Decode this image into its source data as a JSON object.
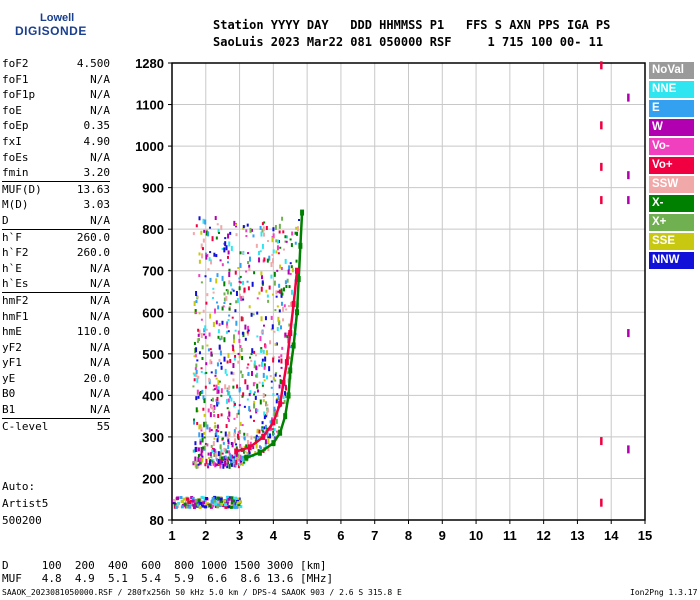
{
  "logo": {
    "line1": "Lowell",
    "line2": "DIGISONDE"
  },
  "header": {
    "line1": "Station YYYY DAY   DDD HHMMSS P1   FFS S AXN PPS IGA PS",
    "line2": "SaoLuis 2023 Mar22 081 050000 RSF     1 715 100 00- 11"
  },
  "params": [
    {
      "label": "foF2",
      "value": "4.500"
    },
    {
      "label": "foF1",
      "value": "N/A"
    },
    {
      "label": "foF1p",
      "value": "N/A"
    },
    {
      "label": "foE",
      "value": "N/A"
    },
    {
      "label": "foEp",
      "value": "0.35"
    },
    {
      "label": "fxI",
      "value": "4.90"
    },
    {
      "label": "foEs",
      "value": "N/A"
    },
    {
      "label": "fmin",
      "value": "3.20"
    },
    {
      "label": "MUF(D)",
      "value": "13.63",
      "sep": true
    },
    {
      "label": "M(D)",
      "value": "3.03"
    },
    {
      "label": "D",
      "value": "N/A"
    },
    {
      "label": "h`F",
      "value": "260.0",
      "sep": true
    },
    {
      "label": "h`F2",
      "value": "260.0"
    },
    {
      "label": "h`E",
      "value": "N/A"
    },
    {
      "label": "h`Es",
      "value": "N/A"
    },
    {
      "label": "hmF2",
      "value": "N/A",
      "sep": true
    },
    {
      "label": "hmF1",
      "value": "N/A"
    },
    {
      "label": "hmE",
      "value": "110.0"
    },
    {
      "label": "yF2",
      "value": "N/A"
    },
    {
      "label": "yF1",
      "value": "N/A"
    },
    {
      "label": "yE",
      "value": "20.0"
    },
    {
      "label": "B0",
      "value": "N/A"
    },
    {
      "label": "B1",
      "value": "N/A"
    },
    {
      "label": "C-level",
      "value": "55",
      "sep": true
    }
  ],
  "auto": {
    "line1": "Auto:",
    "line2": "Artist5",
    "line3": "500200"
  },
  "legend": [
    {
      "label": "NoVal",
      "color": "#9a9a9a"
    },
    {
      "label": "NNE",
      "color": "#2fe6f0"
    },
    {
      "label": "E",
      "color": "#33a0f0"
    },
    {
      "label": "W",
      "color": "#b000b0"
    },
    {
      "label": "Vo-",
      "color": "#f040c0"
    },
    {
      "label": "Vo+",
      "color": "#f00040"
    },
    {
      "label": "SSW",
      "color": "#f0a8a8"
    },
    {
      "label": "X-",
      "color": "#008000"
    },
    {
      "label": "X+",
      "color": "#70b050"
    },
    {
      "label": "SSE",
      "color": "#c8c810"
    },
    {
      "label": "NNW",
      "color": "#1010d8"
    }
  ],
  "bottom": {
    "line1": "D     100  200  400  600  800 1000 1500 3000 [km]",
    "line2": "MUF   4.8  4.9  5.1  5.4  5.9  6.6  8.6 13.6 [MHz]"
  },
  "footer": {
    "left": "SAAOK_2023081050000.RSF / 280fx256h 50 kHz 5.0 km / DPS-4 SAAOK 903 / 2.6 S 315.8 E",
    "right": "Ion2Png 1.3.17"
  },
  "chart_data": {
    "type": "scatter",
    "x_ticks": [
      "1",
      "2",
      "3",
      "4",
      "5",
      "6",
      "7",
      "8",
      "9",
      "10",
      "11",
      "12",
      "13",
      "14",
      "15"
    ],
    "y_ticks": [
      "80",
      "200",
      "300",
      "400",
      "500",
      "600",
      "700",
      "800",
      "900",
      "1000",
      "1100",
      "1280"
    ],
    "xlim": [
      1,
      15
    ],
    "ylim_ticks": [
      80,
      200,
      300,
      400,
      500,
      600,
      700,
      800,
      900,
      1000,
      1100,
      1280
    ],
    "grid": true,
    "legend_placement": "right",
    "traces": [
      {
        "name": "X-",
        "color": "#008000",
        "points": [
          [
            3.2,
            250
          ],
          [
            3.6,
            262
          ],
          [
            4.0,
            285
          ],
          [
            4.2,
            310
          ],
          [
            4.35,
            350
          ],
          [
            4.45,
            400
          ],
          [
            4.5,
            460
          ],
          [
            4.6,
            520
          ],
          [
            4.7,
            600
          ],
          [
            4.75,
            680
          ],
          [
            4.8,
            760
          ],
          [
            4.85,
            840
          ]
        ]
      },
      {
        "name": "Vo+",
        "color": "#f00040",
        "points": [
          [
            2.9,
            265
          ],
          [
            3.3,
            275
          ],
          [
            3.7,
            300
          ],
          [
            4.0,
            335
          ],
          [
            4.2,
            380
          ],
          [
            4.3,
            430
          ],
          [
            4.4,
            480
          ],
          [
            4.5,
            550
          ],
          [
            4.6,
            620
          ],
          [
            4.7,
            700
          ]
        ]
      }
    ],
    "spikes": [
      {
        "x": 13.7,
        "y": 1270,
        "color": "#f00040"
      },
      {
        "x": 13.7,
        "y": 1050,
        "color": "#f00040"
      },
      {
        "x": 13.7,
        "y": 950,
        "color": "#f00040"
      },
      {
        "x": 13.7,
        "y": 870,
        "color": "#f00040"
      },
      {
        "x": 13.7,
        "y": 290,
        "color": "#f00040"
      },
      {
        "x": 13.7,
        "y": 130,
        "color": "#f00040"
      },
      {
        "x": 14.5,
        "y": 1130,
        "color": "#b000b0"
      },
      {
        "x": 14.5,
        "y": 930,
        "color": "#b000b0"
      },
      {
        "x": 14.5,
        "y": 870,
        "color": "#b000b0"
      },
      {
        "x": 14.5,
        "y": 550,
        "color": "#b000b0"
      },
      {
        "x": 14.5,
        "y": 270,
        "color": "#b000b0"
      }
    ]
  }
}
